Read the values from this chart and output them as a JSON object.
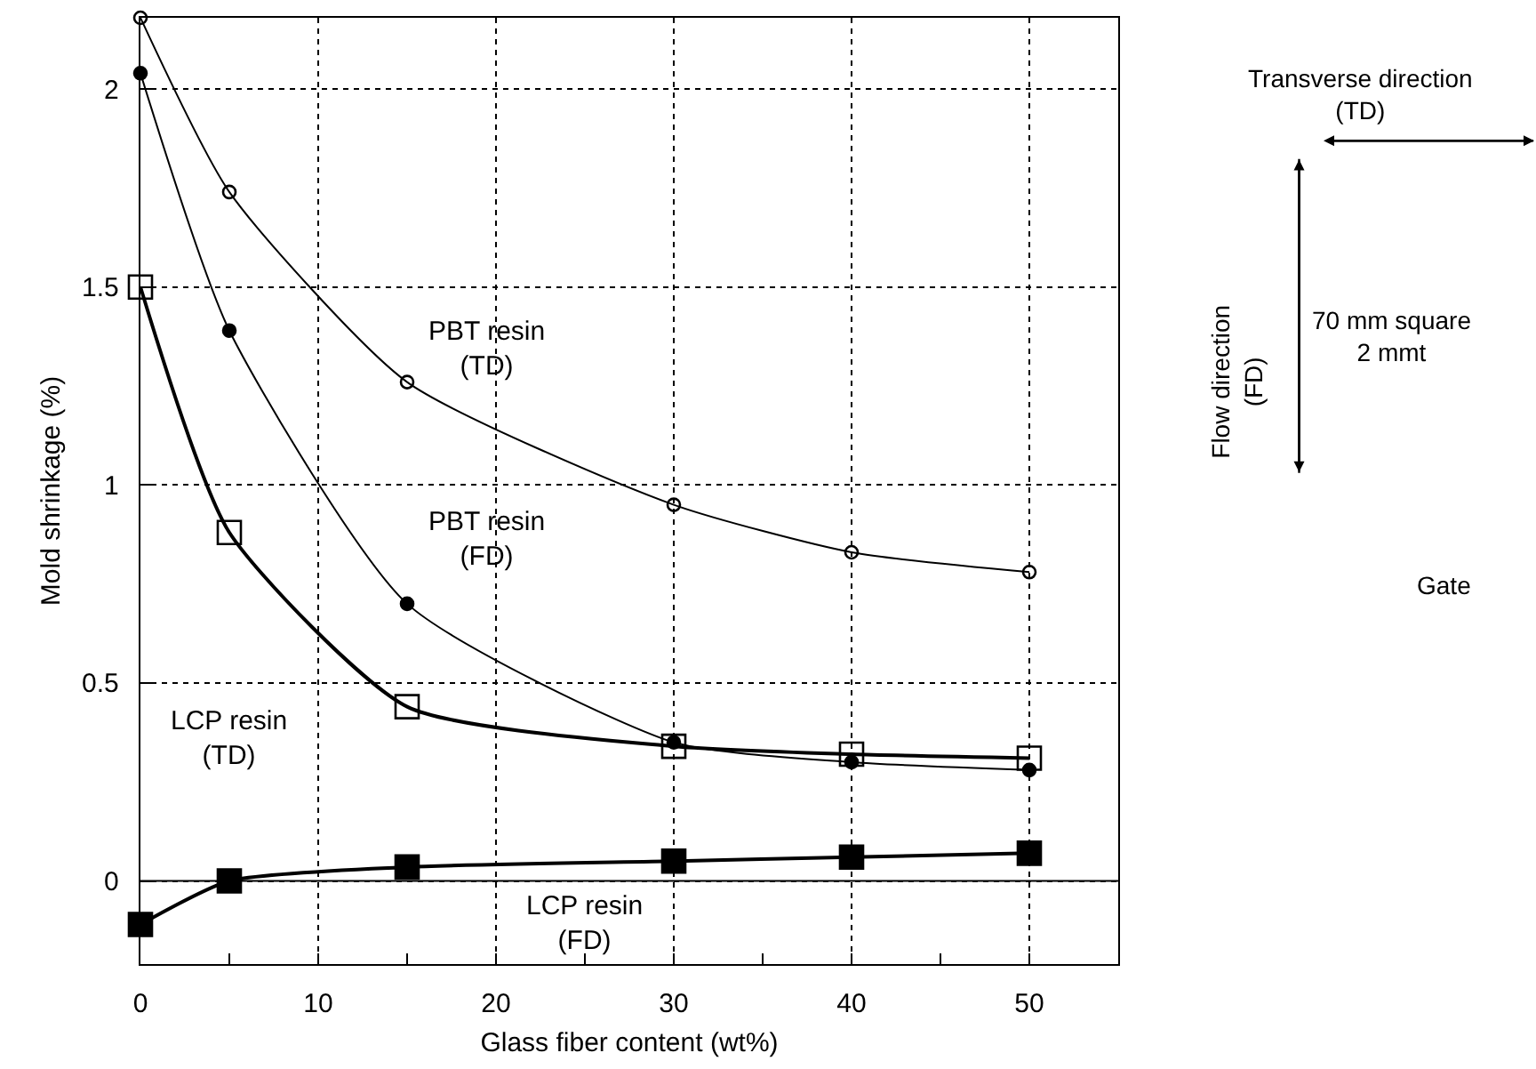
{
  "chart_data": {
    "type": "line",
    "xlabel": "Glass fiber content (wt%)",
    "ylabel": "Mold shrinkage (%)",
    "x": [
      0,
      5,
      15,
      30,
      40,
      50
    ],
    "series": [
      {
        "name": "PBT resin\n(TD)",
        "color": "#000000",
        "values": [
          2.18,
          1.74,
          1.26,
          0.95,
          0.83,
          0.78
        ],
        "marker": "circle"
      },
      {
        "name": "PBT resin\n(FD)",
        "color": "#000000",
        "values": [
          2.04,
          1.39,
          0.7,
          0.35,
          0.3,
          0.28
        ],
        "marker": "circle"
      },
      {
        "name": "LCP resin\n(TD)",
        "color": "#000000",
        "values": [
          1.5,
          0.88,
          0.44,
          0.34,
          0.32,
          0.31
        ],
        "marker": "square"
      },
      {
        "name": "LCP resin\n(FD)",
        "color": "#000000",
        "values": [
          -0.11,
          0.0,
          0.035,
          0.05,
          0.06,
          0.07
        ],
        "marker": "square"
      }
    ],
    "xlim": [
      0,
      55
    ],
    "ylim": [
      -0.21,
      2.18
    ],
    "xticks": [
      0,
      {
        "value": 5,
        "label": null
      },
      10,
      {
        "value": 15,
        "label": null
      },
      20,
      {
        "value": 25,
        "label": null
      },
      30,
      {
        "value": 35,
        "label": null
      },
      40,
      {
        "value": 45,
        "label": null
      },
      50
    ],
    "yticks": [
      0,
      0.5,
      1,
      1.5,
      2
    ],
    "grid": true,
    "line_style": "solid",
    "ref_lines": [
      {
        "axis": "y",
        "value": 0,
        "label": null,
        "color": "#000000"
      }
    ],
    "annotations": [
      "Transverse direction\n(TD)",
      "Flow direction\n(FD)",
      "70 mm square\n2 mmt",
      "Gate"
    ]
  }
}
